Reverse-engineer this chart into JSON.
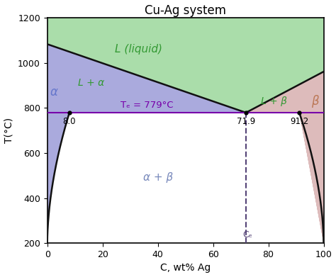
{
  "title": "Cu-Ag system",
  "xlabel": "C, wt% Ag",
  "ylabel": "T(°C)",
  "xlim": [
    0,
    100
  ],
  "ylim": [
    200,
    1200
  ],
  "eutectic_T": 779,
  "eutectic_x": 71.9,
  "alpha_boundary_x": 8.0,
  "beta_boundary_x": 91.2,
  "Cu_melt": 1083,
  "Ag_melt": 961,
  "color_liquid": "#aaddaa",
  "color_alpha": "#aaaadd",
  "color_beta": "#ddbbbb",
  "color_eutectic_line": "#7700aa",
  "color_dashed": "#554477",
  "color_black": "#111111",
  "alpha_label_color": "#6677cc",
  "beta_label_color": "#bb7755",
  "alpha_beta_label_color": "#7788bb",
  "L_alpha_label_color": "#339933",
  "L_beta_label_color": "#339933",
  "liquid_label_color": "#339933",
  "xticks": [
    0,
    20,
    40,
    60,
    80,
    100
  ],
  "yticks": [
    200,
    400,
    600,
    800,
    1000,
    1200
  ],
  "figsize": [
    4.74,
    3.91
  ],
  "dpi": 100
}
